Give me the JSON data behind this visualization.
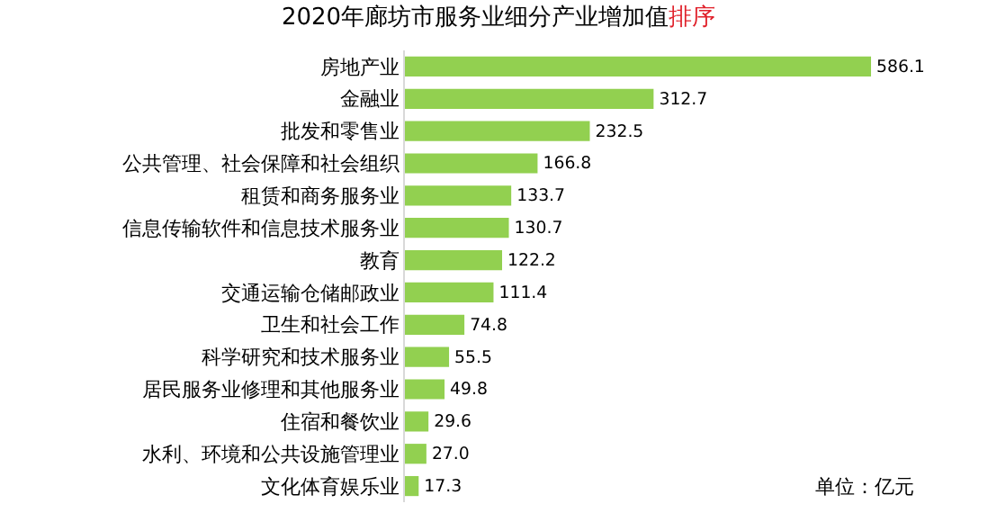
{
  "chart_data": {
    "type": "bar",
    "orientation": "horizontal",
    "title": "2020年廊坊市服务业细分产业增加值排序",
    "categories": [
      "房地产业",
      "金融业",
      "批发和零售业",
      "公共管理、社会保障和社会组织",
      "租赁和商务服务业",
      "信息传输软件和信息技术服务业",
      "教育",
      "交通运输仓储邮政业",
      "卫生和社会工作",
      "科学研究和技术服务业",
      "居民服务业修理和其他服务业",
      "住宿和餐饮业",
      "水利、环境和公共设施管理业",
      "文化体育娱乐业"
    ],
    "values": [
      586.1,
      312.7,
      232.5,
      166.8,
      133.7,
      130.7,
      122.2,
      111.4,
      74.8,
      55.5,
      49.8,
      29.6,
      27.0,
      17.3
    ],
    "value_labels": [
      "586.1",
      "312.7",
      "232.5",
      "166.8",
      "133.7",
      "130.7",
      "122.2",
      "111.4",
      "74.8",
      "55.5",
      "49.8",
      "29.6",
      "27.0",
      "17.3"
    ],
    "color": "#92d050",
    "annotations": [
      "单位：亿元"
    ]
  }
}
